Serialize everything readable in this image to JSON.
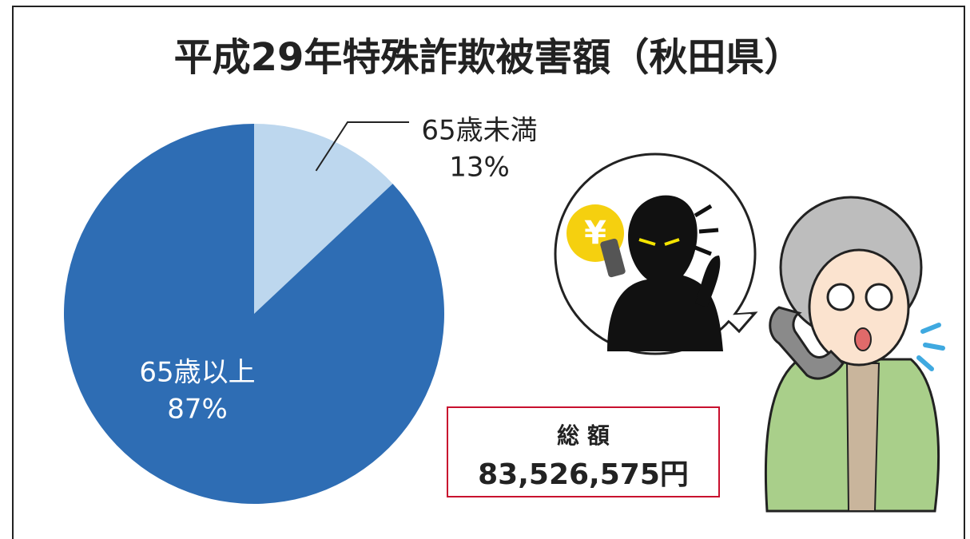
{
  "chart_data": {
    "type": "pie",
    "title": "平成29年特殊詐欺被害額（秋田県）",
    "categories": [
      "65歳未満",
      "65歳以上"
    ],
    "values": [
      13,
      87
    ],
    "value_labels": [
      "13%",
      "87%"
    ],
    "colors": [
      "#bdd7ee",
      "#2e6db4"
    ],
    "annotations": [
      "総 額",
      "83,526,575円",
      "¥"
    ]
  }
}
